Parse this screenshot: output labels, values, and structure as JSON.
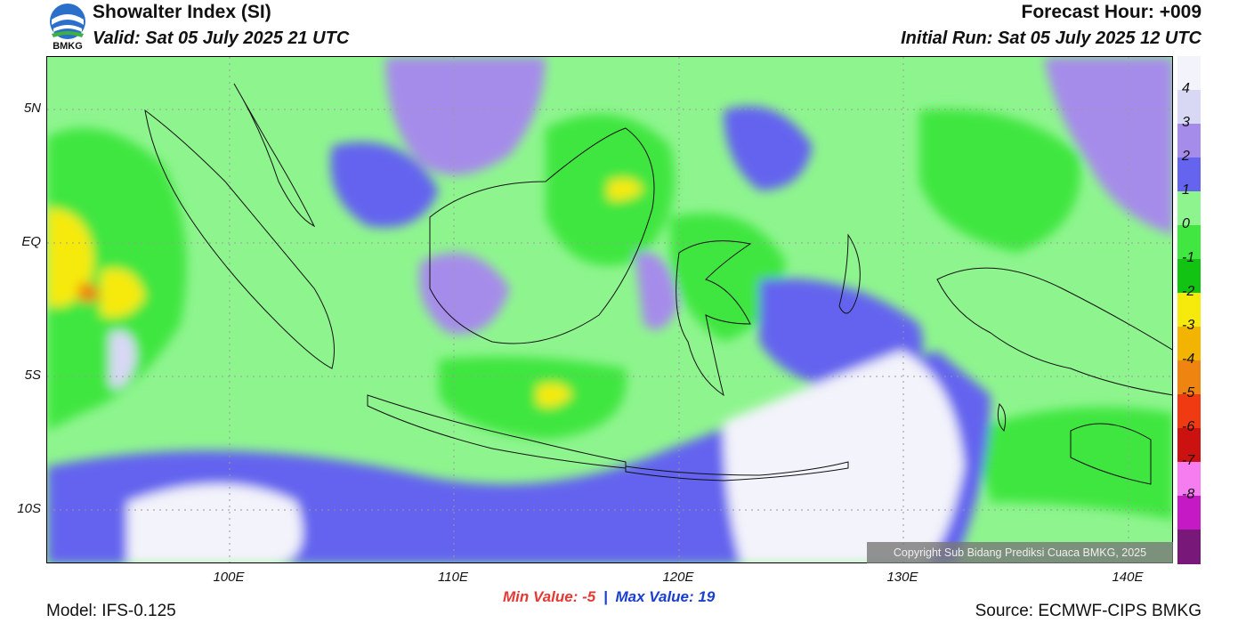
{
  "header": {
    "title": "Showalter Index (SI)",
    "valid": "Valid: Sat 05 July 2025 21 UTC",
    "forecast_hour": "Forecast Hour: +009",
    "initial_run": "Initial Run: Sat 05 July 2025 12 UTC",
    "logo_text": "BMKG"
  },
  "axes": {
    "lat_labels": [
      "5N",
      "EQ",
      "5S",
      "10S"
    ],
    "lon_labels": [
      "100E",
      "110E",
      "120E",
      "130E",
      "140E"
    ]
  },
  "colorbar": {
    "labels": [
      "4",
      "3",
      "2",
      "1",
      "0",
      "-1",
      "-2",
      "-3",
      "-4",
      "-5",
      "-6",
      "-7",
      "-8"
    ],
    "colors": [
      "#f3f3fb",
      "#d8d8f5",
      "#a68cea",
      "#6464ef",
      "#8ef58e",
      "#41e641",
      "#13c313",
      "#f6ea0c",
      "#f2b400",
      "#ef8410",
      "#f03a12",
      "#cc1111",
      "#f57df0",
      "#c419c4",
      "#781878"
    ]
  },
  "stats": {
    "min_label": "Min Value:",
    "min_value": "-5",
    "separator": "|",
    "max_label": "Max Value:",
    "max_value": "19"
  },
  "footer": {
    "model": "Model: IFS-0.125",
    "source": "Source: ECMWF-CIPS BMKG",
    "copyright": "Copyright Sub Bidang Prediksi Cuaca BMKG, 2025"
  }
}
